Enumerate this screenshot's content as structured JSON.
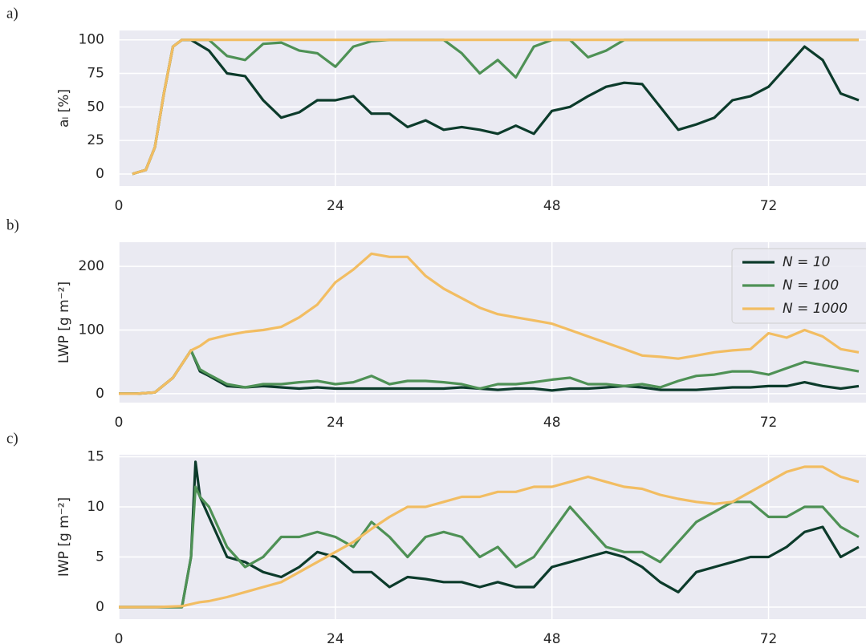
{
  "chart_data": [
    {
      "type": "line",
      "panel_label": "a)",
      "ylabel": "aₗ  [%]",
      "x": [
        1.5,
        3,
        4,
        5,
        6,
        7,
        8,
        10,
        12,
        14,
        16,
        18,
        20,
        22,
        24,
        26,
        28,
        30,
        32,
        34,
        36,
        38,
        40,
        42,
        44,
        46,
        48,
        50,
        52,
        54,
        56,
        58,
        60,
        62,
        64,
        66,
        68,
        70,
        72,
        74,
        76,
        78,
        80,
        82
      ],
      "series": [
        {
          "color": "#0c3b2b",
          "values": [
            0,
            3,
            20,
            60,
            95,
            100,
            100,
            92,
            75,
            73,
            55,
            42,
            46,
            55,
            55,
            58,
            45,
            45,
            35,
            40,
            33,
            35,
            33,
            30,
            36,
            30,
            47,
            50,
            58,
            65,
            68,
            67,
            50,
            33,
            37,
            42,
            55,
            58,
            65,
            80,
            95,
            85,
            60,
            55
          ]
        },
        {
          "color": "#4e9155",
          "values": [
            0,
            3,
            20,
            60,
            95,
            100,
            100,
            100,
            88,
            85,
            97,
            98,
            92,
            90,
            80,
            95,
            99,
            100,
            100,
            100,
            100,
            90,
            75,
            85,
            72,
            95,
            100,
            100,
            87,
            92,
            100,
            100,
            100,
            100,
            100,
            100,
            100,
            100,
            100,
            100,
            100,
            100,
            100,
            100
          ]
        },
        {
          "color": "#f2bd62",
          "values": [
            0,
            3,
            20,
            60,
            95,
            100,
            100,
            100,
            100,
            100,
            100,
            100,
            100,
            100,
            100,
            100,
            100,
            100,
            100,
            100,
            100,
            100,
            100,
            100,
            100,
            100,
            100,
            100,
            100,
            100,
            100,
            100,
            100,
            100,
            100,
            100,
            100,
            100,
            100,
            100,
            100,
            100,
            100,
            100
          ]
        }
      ],
      "xlim": [
        0,
        82.8
      ],
      "xticks": [
        0,
        24,
        48,
        72
      ],
      "ylim": [
        -9,
        107
      ],
      "yticks": [
        0,
        25,
        50,
        75,
        100
      ],
      "grid": true
    },
    {
      "type": "line",
      "panel_label": "b)",
      "ylabel": "LWP  [g m⁻²]",
      "x": [
        0,
        2,
        4,
        6,
        8,
        9,
        10,
        12,
        14,
        16,
        18,
        20,
        22,
        24,
        26,
        28,
        30,
        32,
        34,
        36,
        38,
        40,
        42,
        44,
        46,
        48,
        50,
        52,
        54,
        56,
        58,
        60,
        62,
        64,
        66,
        68,
        70,
        72,
        74,
        76,
        78,
        80,
        82
      ],
      "series": [
        {
          "name": "N = 10",
          "color": "#0c3b2b",
          "values": [
            0,
            0,
            2,
            25,
            68,
            35,
            28,
            12,
            10,
            12,
            10,
            8,
            10,
            8,
            8,
            8,
            8,
            8,
            8,
            8,
            10,
            8,
            6,
            8,
            8,
            5,
            8,
            8,
            10,
            12,
            10,
            6,
            6,
            6,
            8,
            10,
            10,
            12,
            12,
            18,
            12,
            8,
            12
          ]
        },
        {
          "name": "N = 100",
          "color": "#4e9155",
          "values": [
            0,
            0,
            2,
            25,
            68,
            38,
            30,
            15,
            10,
            15,
            15,
            18,
            20,
            15,
            18,
            28,
            15,
            20,
            20,
            18,
            15,
            8,
            15,
            15,
            18,
            22,
            25,
            15,
            15,
            12,
            15,
            10,
            20,
            28,
            30,
            35,
            35,
            30,
            40,
            50,
            45,
            40,
            35
          ]
        },
        {
          "name": "N = 1000",
          "color": "#f2bd62",
          "values": [
            0,
            0,
            2,
            25,
            68,
            75,
            85,
            92,
            97,
            100,
            105,
            120,
            140,
            175,
            195,
            220,
            215,
            215,
            185,
            165,
            150,
            135,
            125,
            120,
            115,
            110,
            100,
            90,
            80,
            70,
            60,
            58,
            55,
            60,
            65,
            68,
            70,
            95,
            88,
            100,
            90,
            70,
            65
          ]
        }
      ],
      "xlim": [
        0,
        82.8
      ],
      "xticks": [
        0,
        24,
        48,
        72
      ],
      "ylim": [
        -14,
        238
      ],
      "yticks": [
        0,
        100,
        200
      ],
      "grid": true,
      "legend": "upper right"
    },
    {
      "type": "line",
      "panel_label": "c)",
      "ylabel": "IWP  [g m⁻²]",
      "x": [
        0,
        4,
        7,
        8,
        8.5,
        9,
        10,
        12,
        14,
        16,
        18,
        20,
        22,
        24,
        26,
        28,
        30,
        32,
        34,
        36,
        38,
        40,
        42,
        44,
        46,
        48,
        50,
        52,
        54,
        56,
        58,
        60,
        62,
        64,
        66,
        68,
        70,
        72,
        74,
        76,
        78,
        80,
        82
      ],
      "series": [
        {
          "color": "#0c3b2b",
          "values": [
            0,
            0,
            0,
            5,
            14.5,
            11,
            9,
            5,
            4.5,
            3.5,
            3,
            4,
            5.5,
            5,
            3.5,
            3.5,
            2,
            3,
            2.8,
            2.5,
            2.5,
            2,
            2.5,
            2,
            2,
            4,
            4.5,
            5,
            5.5,
            5,
            4,
            2.5,
            1.5,
            3.5,
            4,
            4.5,
            5,
            5,
            6,
            7.5,
            8,
            5,
            6
          ]
        },
        {
          "color": "#4e9155",
          "values": [
            0,
            0,
            0,
            5,
            12,
            11,
            10,
            6,
            4,
            5,
            7,
            7,
            7.5,
            7,
            6,
            8.5,
            7,
            5,
            7,
            7.5,
            7,
            5,
            6,
            4,
            5,
            7.5,
            10,
            8,
            6,
            5.5,
            5.5,
            4.5,
            6.5,
            8.5,
            9.5,
            10.5,
            10.5,
            9,
            9,
            10,
            10,
            8,
            7
          ]
        },
        {
          "color": "#f2bd62",
          "values": [
            0,
            0,
            0.1,
            0.3,
            0.4,
            0.5,
            0.6,
            1,
            1.5,
            2,
            2.5,
            3.5,
            4.5,
            5.5,
            6.5,
            7.8,
            9,
            10,
            10,
            10.5,
            11,
            11,
            11.5,
            11.5,
            12,
            12,
            12.5,
            13,
            12.5,
            12,
            11.8,
            11.2,
            10.8,
            10.5,
            10.3,
            10.5,
            11.5,
            12.5,
            13.5,
            14,
            14,
            13,
            12.5
          ]
        }
      ],
      "xlim": [
        0,
        82.8
      ],
      "xticks": [
        0,
        24,
        48,
        72
      ],
      "ylim": [
        -1.2,
        15.2
      ],
      "yticks": [
        0,
        5,
        10,
        15
      ],
      "grid": true
    }
  ]
}
